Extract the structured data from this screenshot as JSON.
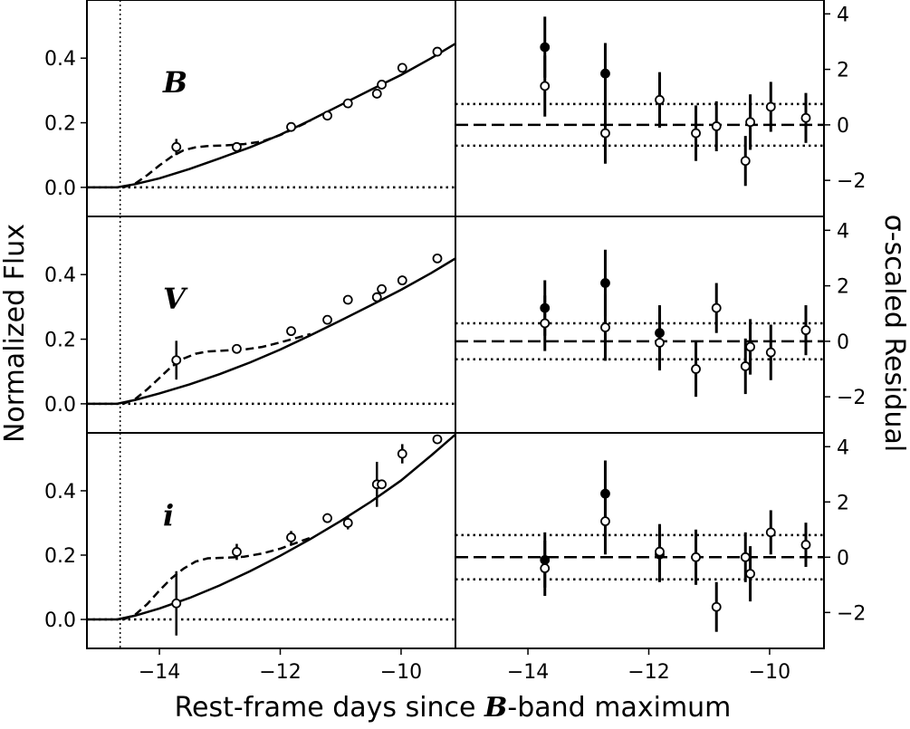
{
  "chart_data": {
    "type": "scatter",
    "xlabel": "Rest-frame days since B-band maximum",
    "xlabel_parts": [
      "Rest-frame days since ",
      "B",
      "-band maximum"
    ],
    "left_ylabel": "Normalized Flux",
    "right_ylabel": "σ-scaled Residual",
    "xlim": [
      -15.2,
      -9.1
    ],
    "left_ylim": [
      -0.09,
      0.58
    ],
    "right_ylim": [
      -3.3,
      4.5
    ],
    "x_ticks": [
      -14,
      -12,
      -10
    ],
    "x_tick_labels": [
      "−14",
      "−12",
      "−10"
    ],
    "left_y_ticks": [
      0.0,
      0.2,
      0.4
    ],
    "left_y_tick_labels": [
      "0.0",
      "0.2",
      "0.4"
    ],
    "right_y_ticks": [
      -2,
      0,
      2,
      4
    ],
    "right_y_tick_labels": [
      "−2",
      "0",
      "2",
      "4"
    ],
    "explosion_time": -14.65,
    "panels": [
      {
        "band": "B",
        "flux": {
          "points": [
            {
              "x": -13.72,
              "y": 0.125,
              "err": 0.025
            },
            {
              "x": -12.72,
              "y": 0.125,
              "err": 0.008
            },
            {
              "x": -11.82,
              "y": 0.187,
              "err": 0.008
            },
            {
              "x": -11.22,
              "y": 0.222,
              "err": 0.008
            },
            {
              "x": -10.88,
              "y": 0.26,
              "err": 0.008
            },
            {
              "x": -10.4,
              "y": 0.29,
              "err": 0.012
            },
            {
              "x": -10.32,
              "y": 0.318,
              "err": 0.008
            },
            {
              "x": -9.98,
              "y": 0.37,
              "err": 0.012
            },
            {
              "x": -9.4,
              "y": 0.42,
              "err": 0.008
            }
          ],
          "solid_model": [
            [
              -15.2,
              0.0
            ],
            [
              -14.7,
              0.0
            ],
            [
              -14.4,
              0.01
            ],
            [
              -14.0,
              0.028
            ],
            [
              -13.5,
              0.057
            ],
            [
              -13.0,
              0.09
            ],
            [
              -12.5,
              0.124
            ],
            [
              -12.0,
              0.163
            ],
            [
              -11.5,
              0.208
            ],
            [
              -11.0,
              0.255
            ],
            [
              -10.5,
              0.302
            ],
            [
              -10.0,
              0.348
            ],
            [
              -9.5,
              0.4
            ],
            [
              -9.1,
              0.445
            ]
          ],
          "dashed_model": [
            [
              -14.6,
              0.0
            ],
            [
              -14.4,
              0.012
            ],
            [
              -14.2,
              0.038
            ],
            [
              -14.0,
              0.068
            ],
            [
              -13.8,
              0.095
            ],
            [
              -13.6,
              0.115
            ],
            [
              -13.4,
              0.124
            ],
            [
              -13.2,
              0.128
            ],
            [
              -12.9,
              0.13
            ],
            [
              -12.6,
              0.134
            ],
            [
              -12.3,
              0.142
            ],
            [
              -12.0,
              0.162
            ],
            [
              -11.5,
              0.206
            ]
          ]
        },
        "residual": {
          "open": [
            {
              "x": -13.72,
              "y": 1.4,
              "err": 1.1
            },
            {
              "x": -12.72,
              "y": -0.3,
              "err": 1.1
            },
            {
              "x": -11.82,
              "y": 0.9,
              "err": 1.0
            },
            {
              "x": -11.22,
              "y": -0.3,
              "err": 1.0
            },
            {
              "x": -10.88,
              "y": -0.05,
              "err": 0.9
            },
            {
              "x": -10.4,
              "y": -1.3,
              "err": 0.9
            },
            {
              "x": -10.32,
              "y": 0.1,
              "err": 1.0
            },
            {
              "x": -9.98,
              "y": 0.65,
              "err": 0.9
            },
            {
              "x": -9.4,
              "y": 0.25,
              "err": 0.9
            }
          ],
          "filled": [
            {
              "x": -13.72,
              "y": 2.8,
              "err": 1.1
            },
            {
              "x": -12.72,
              "y": 1.85,
              "err": 1.1
            }
          ],
          "band_levels": [
            0.75,
            -0.75
          ]
        }
      },
      {
        "band": "V",
        "flux": {
          "points": [
            {
              "x": -13.72,
              "y": 0.135,
              "err": 0.06
            },
            {
              "x": -12.72,
              "y": 0.17,
              "err": 0.008
            },
            {
              "x": -11.82,
              "y": 0.225,
              "err": 0.008
            },
            {
              "x": -11.22,
              "y": 0.26,
              "err": 0.008
            },
            {
              "x": -10.88,
              "y": 0.322,
              "err": 0.012
            },
            {
              "x": -10.4,
              "y": 0.33,
              "err": 0.015
            },
            {
              "x": -10.32,
              "y": 0.355,
              "err": 0.008
            },
            {
              "x": -9.98,
              "y": 0.382,
              "err": 0.015
            },
            {
              "x": -9.4,
              "y": 0.45,
              "err": 0.008
            }
          ],
          "solid_model": [
            [
              -15.2,
              0.0
            ],
            [
              -14.7,
              0.0
            ],
            [
              -14.4,
              0.012
            ],
            [
              -14.0,
              0.032
            ],
            [
              -13.5,
              0.06
            ],
            [
              -13.0,
              0.092
            ],
            [
              -12.5,
              0.128
            ],
            [
              -12.0,
              0.168
            ],
            [
              -11.5,
              0.212
            ],
            [
              -11.0,
              0.258
            ],
            [
              -10.5,
              0.305
            ],
            [
              -10.0,
              0.353
            ],
            [
              -9.5,
              0.405
            ],
            [
              -9.1,
              0.45
            ]
          ],
          "dashed_model": [
            [
              -14.6,
              0.0
            ],
            [
              -14.4,
              0.015
            ],
            [
              -14.2,
              0.045
            ],
            [
              -14.0,
              0.08
            ],
            [
              -13.8,
              0.115
            ],
            [
              -13.6,
              0.14
            ],
            [
              -13.4,
              0.155
            ],
            [
              -13.2,
              0.162
            ],
            [
              -12.9,
              0.165
            ],
            [
              -12.6,
              0.168
            ],
            [
              -12.3,
              0.176
            ],
            [
              -12.0,
              0.19
            ],
            [
              -11.5,
              0.216
            ]
          ]
        },
        "residual": {
          "open": [
            {
              "x": -13.72,
              "y": 0.65,
              "err": 1.0
            },
            {
              "x": -12.72,
              "y": 0.5,
              "err": 1.2
            },
            {
              "x": -11.82,
              "y": -0.05,
              "err": 1.0
            },
            {
              "x": -11.22,
              "y": -1.0,
              "err": 1.0
            },
            {
              "x": -10.88,
              "y": 1.2,
              "err": 0.9
            },
            {
              "x": -10.4,
              "y": -0.9,
              "err": 1.0
            },
            {
              "x": -10.32,
              "y": -0.2,
              "err": 1.0
            },
            {
              "x": -9.98,
              "y": -0.4,
              "err": 1.0
            },
            {
              "x": -9.4,
              "y": 0.4,
              "err": 0.9
            }
          ],
          "filled": [
            {
              "x": -13.72,
              "y": 1.2,
              "err": 1.0
            },
            {
              "x": -12.72,
              "y": 2.1,
              "err": 1.2
            },
            {
              "x": -11.82,
              "y": 0.3,
              "err": 1.0
            }
          ],
          "band_levels": [
            0.65,
            -0.65
          ]
        }
      },
      {
        "band": "i",
        "flux": {
          "points": [
            {
              "x": -13.72,
              "y": 0.05,
              "err": 0.1
            },
            {
              "x": -12.72,
              "y": 0.21,
              "err": 0.025
            },
            {
              "x": -11.82,
              "y": 0.255,
              "err": 0.02
            },
            {
              "x": -11.22,
              "y": 0.315,
              "err": 0.015
            },
            {
              "x": -10.88,
              "y": 0.3,
              "err": 0.02
            },
            {
              "x": -10.4,
              "y": 0.42,
              "err": 0.07
            },
            {
              "x": -10.32,
              "y": 0.42,
              "err": 0.008
            },
            {
              "x": -9.98,
              "y": 0.515,
              "err": 0.03
            },
            {
              "x": -9.4,
              "y": 0.56,
              "err": 0.008
            }
          ],
          "solid_model": [
            [
              -15.2,
              0.0
            ],
            [
              -14.7,
              0.0
            ],
            [
              -14.4,
              0.012
            ],
            [
              -14.0,
              0.034
            ],
            [
              -13.5,
              0.067
            ],
            [
              -13.0,
              0.106
            ],
            [
              -12.5,
              0.15
            ],
            [
              -12.0,
              0.198
            ],
            [
              -11.5,
              0.25
            ],
            [
              -11.0,
              0.306
            ],
            [
              -10.5,
              0.366
            ],
            [
              -10.0,
              0.432
            ],
            [
              -9.5,
              0.51
            ],
            [
              -9.1,
              0.575
            ]
          ],
          "dashed_model": [
            [
              -14.6,
              0.0
            ],
            [
              -14.4,
              0.015
            ],
            [
              -14.2,
              0.048
            ],
            [
              -14.0,
              0.09
            ],
            [
              -13.8,
              0.128
            ],
            [
              -13.6,
              0.158
            ],
            [
              -13.4,
              0.18
            ],
            [
              -13.2,
              0.19
            ],
            [
              -12.9,
              0.192
            ],
            [
              -12.6,
              0.195
            ],
            [
              -12.3,
              0.205
            ],
            [
              -12.0,
              0.22
            ],
            [
              -11.5,
              0.254
            ]
          ]
        },
        "residual": {
          "open": [
            {
              "x": -13.72,
              "y": -0.4,
              "err": 1.0
            },
            {
              "x": -12.72,
              "y": 1.3,
              "err": 1.2
            },
            {
              "x": -11.82,
              "y": 0.2,
              "err": 1.0
            },
            {
              "x": -11.22,
              "y": 0.0,
              "err": 1.0
            },
            {
              "x": -10.88,
              "y": -1.8,
              "err": 0.9
            },
            {
              "x": -10.4,
              "y": 0.0,
              "err": 0.9
            },
            {
              "x": -10.32,
              "y": -0.6,
              "err": 1.0
            },
            {
              "x": -9.98,
              "y": 0.9,
              "err": 0.8
            },
            {
              "x": -9.4,
              "y": 0.45,
              "err": 0.8
            }
          ],
          "filled": [
            {
              "x": -13.72,
              "y": -0.1,
              "err": 1.0
            },
            {
              "x": -12.72,
              "y": 2.3,
              "err": 1.2
            },
            {
              "x": -11.82,
              "y": 0.1,
              "err": 1.0
            }
          ],
          "band_levels": [
            0.8,
            -0.8
          ]
        }
      }
    ]
  }
}
